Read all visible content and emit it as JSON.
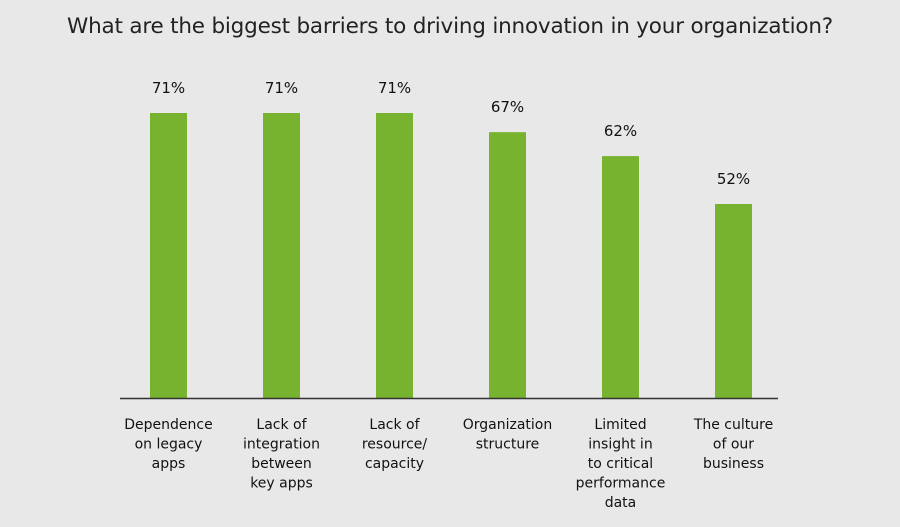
{
  "chart_data": {
    "type": "bar",
    "title": "What are the biggest barriers to driving innovation in your organization?",
    "xlabel": "",
    "ylabel": "",
    "categories": [
      [
        "Dependence",
        "on legacy",
        "apps"
      ],
      [
        "Lack of",
        "integration",
        "between",
        "key apps"
      ],
      [
        "Lack of",
        "resource/",
        "capacity"
      ],
      [
        "Organization",
        "structure"
      ],
      [
        "Limited",
        "insight in",
        "to critical",
        "performance",
        "data"
      ],
      [
        "The culture",
        "of our",
        "business"
      ]
    ],
    "values": [
      71,
      71,
      71,
      67,
      62,
      52
    ],
    "value_labels": [
      "71%",
      "71%",
      "71%",
      "67%",
      "62%",
      "52%"
    ],
    "ylim": [
      11.5,
      71
    ],
    "grid": false,
    "legend": "none",
    "colors": {
      "bar": "#78b32f",
      "axis": "#333333",
      "background": "#e8e8e8"
    }
  }
}
